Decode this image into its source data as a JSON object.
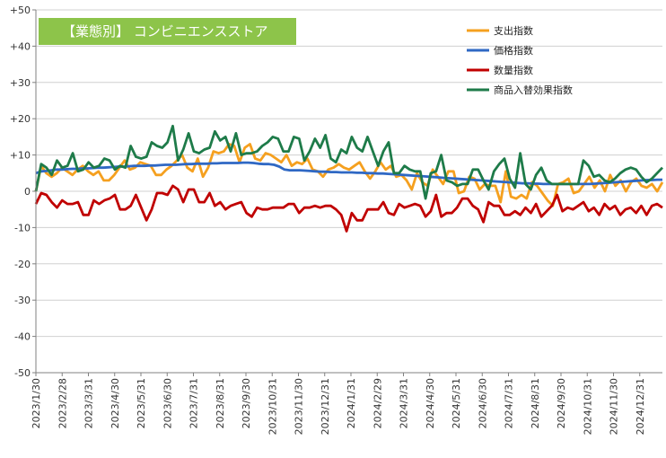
{
  "chart_data": {
    "type": "line",
    "title": "【業態別】 コンビニエンスストア",
    "xlabel": "",
    "ylabel": "",
    "ylim": [
      -50,
      50
    ],
    "yticks": [
      "+50",
      "+40",
      "+30",
      "+20",
      "+10",
      "0",
      "-10",
      "-20",
      "-30",
      "-40",
      "-50"
    ],
    "grid": true,
    "legend_position": "top-right",
    "x_tick_labels": [
      "2023/1/30",
      "2023/2/28",
      "2023/3/31",
      "2023/4/30",
      "2023/5/31",
      "2023/6/30",
      "2023/7/31",
      "2023/8/31",
      "2023/9/30",
      "2023/10/31",
      "2023/11/30",
      "2023/12/31",
      "2024/1/31",
      "2024/2/29",
      "2024/3/31",
      "2024/4/30",
      "2024/5/31",
      "2024/6/30",
      "2024/7/31",
      "2024/8/31",
      "2024/9/30",
      "2024/10/31",
      "2024/11/30",
      "2024/12/31"
    ],
    "series": [
      {
        "name": "支出指数",
        "color": "#f5a01f",
        "values": [
          0,
          7,
          5,
          4,
          5,
          6.5,
          5.5,
          4.5,
          6,
          7,
          5.5,
          4.5,
          5.5,
          3,
          3,
          4.5,
          6.5,
          8.5,
          6,
          6.5,
          8,
          7.5,
          7,
          4.5,
          4.5,
          6,
          7,
          8.5,
          10,
          6.5,
          5.5,
          9,
          4,
          6.5,
          11,
          10.5,
          11,
          13,
          12.5,
          8,
          12,
          13,
          9,
          8.5,
          10.5,
          10,
          9,
          8,
          10,
          7,
          8,
          7.5,
          9,
          6,
          5.5,
          4,
          6,
          6.5,
          7.5,
          6.5,
          6,
          7,
          8,
          5.5,
          3.5,
          5.5,
          8,
          6,
          7,
          4,
          4.5,
          3,
          0.5,
          5,
          2.5,
          1.5,
          6,
          4,
          2,
          5.5,
          5.5,
          -0.5,
          0,
          4,
          3.5,
          0.5,
          2,
          1.5,
          1.5,
          -3,
          5.5,
          -1.5,
          -2,
          -1,
          -2,
          2.5,
          1.5,
          -0.5,
          -2.5,
          -4,
          2,
          2.5,
          3.5,
          -0.5,
          0,
          2,
          4,
          1,
          3,
          0,
          4.5,
          1.5,
          3,
          0,
          2.5,
          3.5,
          1.5,
          1,
          2,
          0,
          2.5
        ]
      },
      {
        "name": "価格指数",
        "color": "#2f68c4",
        "values": [
          5,
          5.5,
          5.6,
          5.8,
          6,
          6,
          6.1,
          6.2,
          6.2,
          6.3,
          6.3,
          6.4,
          6.5,
          6.5,
          6.6,
          6.7,
          6.8,
          6.8,
          6.9,
          7,
          7,
          7,
          7.1,
          7.1,
          7.2,
          7.3,
          7.3,
          7.3,
          7.4,
          7.5,
          7.5,
          7.6,
          7.6,
          7.6,
          7.7,
          7.7,
          7.8,
          7.8,
          7.8,
          7.8,
          7.9,
          7.9,
          7.8,
          7.6,
          7.5,
          7.5,
          7.3,
          6.8,
          6,
          5.8,
          5.8,
          5.8,
          5.7,
          5.6,
          5.5,
          5.4,
          5.4,
          5.3,
          5.3,
          5.2,
          5.2,
          5.2,
          5.1,
          5.1,
          5,
          5,
          4.9,
          4.9,
          4.8,
          4.7,
          4.6,
          4.5,
          4.4,
          4.3,
          4.2,
          4.1,
          4,
          3.9,
          3.8,
          3.7,
          3.6,
          3.5,
          3.4,
          3.3,
          3.2,
          3.1,
          3,
          2.9,
          2.8,
          2.7,
          2.6,
          2.5,
          2.4,
          2.3,
          2.2,
          2.2,
          2.1,
          2.1,
          2,
          2,
          2,
          2,
          2,
          2,
          2,
          2,
          2,
          2,
          2.1,
          2.2,
          2.3,
          2.4,
          2.5,
          2.6,
          2.7,
          2.8,
          2.9,
          3,
          3.1,
          3.1,
          3.2,
          3.2
        ]
      },
      {
        "name": "数量指数",
        "color": "#c00000",
        "values": [
          -3.5,
          -0.5,
          -1,
          -3,
          -4.5,
          -2.5,
          -3.5,
          -3.5,
          -3,
          -6.5,
          -6.5,
          -2.5,
          -3.5,
          -2.5,
          -2,
          -1,
          -5,
          -5,
          -4,
          -1,
          -4.5,
          -8,
          -5,
          -0.5,
          -0.5,
          -1,
          1.5,
          0.5,
          -3,
          0.5,
          0.5,
          -3,
          -3,
          -0.5,
          -4,
          -3,
          -5,
          -4,
          -3.5,
          -3,
          -6,
          -7,
          -4.5,
          -5,
          -5,
          -4.5,
          -4.5,
          -4.5,
          -3.5,
          -3.5,
          -6,
          -4.5,
          -4.5,
          -4,
          -4.5,
          -4,
          -4,
          -5,
          -6.5,
          -11,
          -6,
          -8,
          -8,
          -5,
          -5,
          -5,
          -3,
          -6,
          -6.5,
          -3.5,
          -4.5,
          -4,
          -3.5,
          -4,
          -7,
          -5.5,
          -1,
          -7,
          -6,
          -6,
          -4.5,
          -2,
          -2,
          -4,
          -5,
          -8.5,
          -3,
          -4,
          -4,
          -6.5,
          -6.5,
          -5.5,
          -6.5,
          -4.5,
          -6,
          -3.5,
          -7,
          -5.5,
          -4,
          -1,
          -5.5,
          -4.5,
          -5,
          -4,
          -3,
          -5.5,
          -4.5,
          -6.5,
          -3.5,
          -5,
          -4,
          -6.5,
          -5,
          -4.5,
          -6,
          -4,
          -6.5,
          -4,
          -3.5,
          -4.5
        ]
      },
      {
        "name": "商品入替効果指数",
        "color": "#1e7b49",
        "values": [
          0,
          7.5,
          6.5,
          4.5,
          8.5,
          6.5,
          7,
          10.5,
          5.5,
          6,
          8,
          6.5,
          7,
          9,
          8.5,
          6,
          7,
          6.5,
          12.5,
          9.5,
          9,
          9.5,
          13.5,
          12.5,
          12,
          13.5,
          18,
          8.5,
          11.5,
          16,
          11,
          10.5,
          11.5,
          12,
          16.5,
          14,
          15,
          11,
          16,
          10,
          10.5,
          10.5,
          11,
          12.5,
          13.5,
          15,
          14.5,
          11,
          11,
          15,
          14.5,
          8.5,
          11,
          14.5,
          12,
          15.5,
          9,
          8,
          11.5,
          10.5,
          15,
          12,
          11,
          15,
          11,
          7,
          11,
          13.5,
          5,
          5,
          7,
          6,
          5.5,
          5.5,
          -2,
          5,
          5.5,
          10,
          3,
          2.5,
          1.5,
          2,
          2,
          6,
          6,
          3,
          0.5,
          5.5,
          7.5,
          9,
          3.5,
          1,
          10.5,
          2,
          0.5,
          4.5,
          6.5,
          3,
          2,
          2,
          2,
          2,
          2,
          2,
          8.5,
          7,
          4,
          4.5,
          3,
          2.5,
          3.5,
          5,
          6,
          6.5,
          6,
          4,
          2.5,
          3.5,
          5,
          6.5
        ]
      }
    ]
  }
}
